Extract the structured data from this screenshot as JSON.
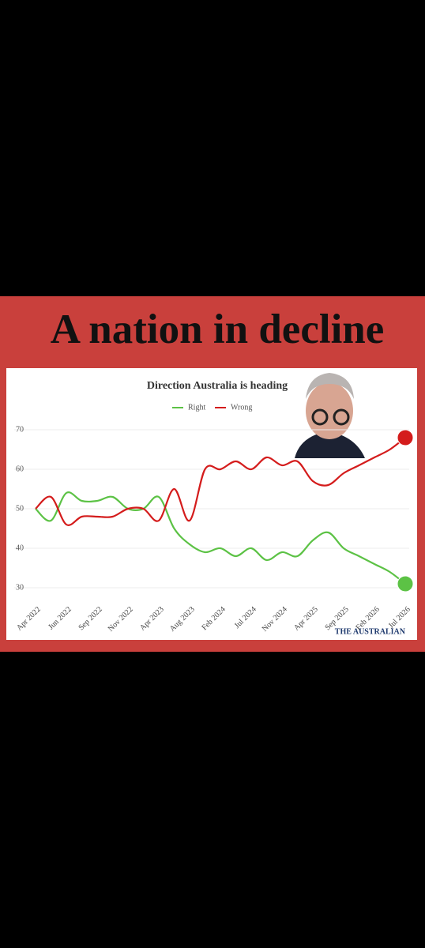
{
  "headline": "A nation in decline",
  "chart_data": {
    "type": "line",
    "title": "Direction Australia is heading",
    "categories": [
      "Apr 2022",
      null,
      "Jun 2022",
      null,
      "Sep 2022",
      null,
      "Nov 2022",
      null,
      "Apr 2023",
      null,
      "Aug 2023",
      null,
      "Feb 2024",
      null,
      "Jul 2024",
      null,
      "Nov 2024",
      null,
      "Apr 2025",
      null,
      "Sep 2025",
      null,
      "Feb 2026",
      null,
      "Jul 2026"
    ],
    "series": [
      {
        "name": "Right",
        "color": "#5cc245",
        "values": [
          50,
          47,
          54,
          52,
          52,
          53,
          50,
          50,
          53,
          45,
          41,
          39,
          40,
          38,
          40,
          37,
          39,
          38,
          42,
          44,
          40,
          38,
          36,
          34,
          31
        ]
      },
      {
        "name": "Wrong",
        "color": "#d41c1c",
        "values": [
          50,
          53,
          46,
          48,
          48,
          48,
          50,
          50,
          47,
          55,
          47,
          60,
          60,
          62,
          60,
          63,
          61,
          62,
          57,
          56,
          59,
          61,
          63,
          65,
          68
        ]
      }
    ],
    "ylim": [
      27,
      73
    ],
    "yticks": [
      30,
      40,
      50,
      60,
      70
    ],
    "grid": true,
    "source": "THE AUSTRALIAN"
  }
}
